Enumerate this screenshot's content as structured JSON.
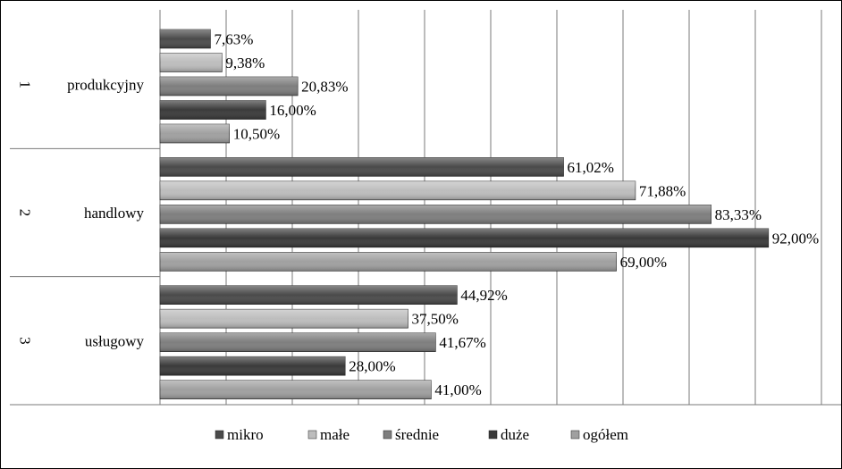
{
  "chart_data": {
    "type": "bar",
    "orientation": "horizontal",
    "categories": [
      {
        "number": "1",
        "name": "produkcyjny"
      },
      {
        "number": "2",
        "name": "handlowy"
      },
      {
        "number": "3",
        "name": "usługowy"
      }
    ],
    "series": [
      {
        "name": "mikro",
        "values": [
          7.63,
          61.02,
          44.92
        ],
        "labels": [
          "7,63%",
          "61,02%",
          "44,92%"
        ],
        "color": "#4a4a4a"
      },
      {
        "name": "małe",
        "values": [
          9.38,
          71.88,
          37.5
        ],
        "labels": [
          "9,38%",
          "71,88%",
          "37,50%"
        ],
        "color": "#bdbdbd"
      },
      {
        "name": "średnie",
        "values": [
          20.83,
          83.33,
          41.67
        ],
        "labels": [
          "20,83%",
          "83,33%",
          "41,67%"
        ],
        "color": "#7e7e7e"
      },
      {
        "name": "duże",
        "values": [
          16.0,
          92.0,
          28.0
        ],
        "labels": [
          "16,00%",
          "92,00%",
          "28,00%"
        ],
        "color": "#3a3a3a"
      },
      {
        "name": "ogółem",
        "values": [
          10.5,
          69.0,
          41.0
        ],
        "labels": [
          "10,50%",
          "69,00%",
          "41,00%"
        ],
        "color": "#a0a0a0"
      }
    ],
    "xlim": [
      0,
      100
    ],
    "grid": true,
    "legend_position": "bottom"
  }
}
